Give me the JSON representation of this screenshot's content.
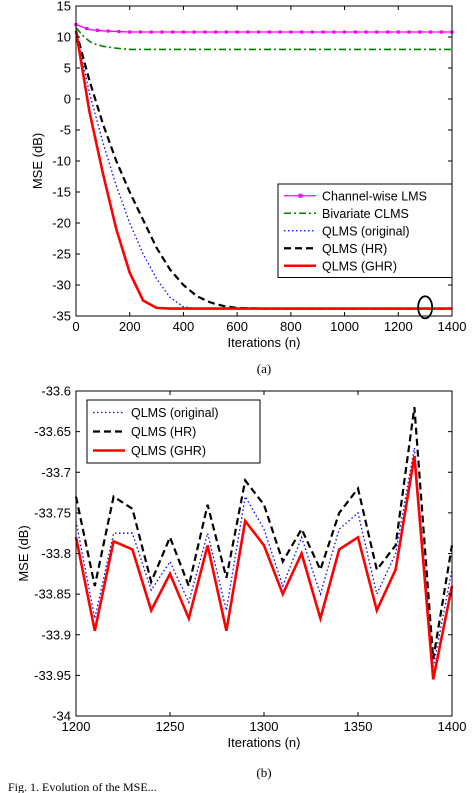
{
  "caption": "Fig. 1.   Evolution of the MSE...",
  "chart_data": [
    {
      "type": "line",
      "subplot_label": "(a)",
      "xlabel": "Iterations (n)",
      "ylabel": "MSE (dB)",
      "xlim": [
        0,
        1400
      ],
      "ylim": [
        -35,
        15
      ],
      "xticks": [
        0,
        200,
        400,
        600,
        800,
        1000,
        1200,
        1400
      ],
      "yticks": [
        15,
        10,
        5,
        0,
        -5,
        -10,
        -15,
        -20,
        -25,
        -30,
        -35
      ],
      "xtick_labels": [
        "0",
        "200",
        "400",
        "600",
        "800",
        "1000",
        "1200",
        "1400"
      ],
      "ytick_labels": [
        "15",
        "10",
        "5",
        "0",
        "-5",
        "-10",
        "-15",
        "-20",
        "-25",
        "-30",
        "-35"
      ],
      "legend_position": "lower-right",
      "annotation": "ellipse marker near n=1300, MSE=-33.8 dB",
      "series": [
        {
          "name": "Channel-wise LMS",
          "color": "#ff00ff",
          "style": "solid-square-markers",
          "x": [
            0,
            50,
            100,
            200,
            400,
            600,
            800,
            1000,
            1200,
            1400
          ],
          "y": [
            12.0,
            11.2,
            11.0,
            10.8,
            10.8,
            10.8,
            10.8,
            10.8,
            10.8,
            10.8
          ]
        },
        {
          "name": "Bivariate CLMS",
          "color": "#008000",
          "style": "dash-dot",
          "x": [
            0,
            30,
            60,
            100,
            150,
            200,
            300,
            400,
            600,
            800,
            1000,
            1200,
            1400
          ],
          "y": [
            11.5,
            10.0,
            9.0,
            8.5,
            8.2,
            8.0,
            8.0,
            8.0,
            8.0,
            8.0,
            8.0,
            8.0,
            8.0
          ]
        },
        {
          "name": "QLMS (original)",
          "color": "#0000ff",
          "style": "dotted",
          "x": [
            0,
            50,
            100,
            150,
            200,
            250,
            300,
            350,
            400,
            450,
            500,
            600,
            800,
            1000,
            1200,
            1400
          ],
          "y": [
            11,
            1,
            -7,
            -14,
            -20,
            -25,
            -29,
            -32,
            -33.5,
            -33.8,
            -33.8,
            -33.8,
            -33.8,
            -33.8,
            -33.8,
            -33.8
          ]
        },
        {
          "name": "QLMS (HR)",
          "color": "#000000",
          "style": "dashed",
          "x": [
            0,
            50,
            100,
            150,
            200,
            250,
            300,
            350,
            400,
            450,
            500,
            550,
            600,
            700,
            800,
            1000,
            1200,
            1400
          ],
          "y": [
            11,
            3,
            -4,
            -10,
            -15,
            -19.5,
            -24,
            -27.5,
            -30,
            -31.8,
            -32.8,
            -33.4,
            -33.7,
            -33.8,
            -33.8,
            -33.8,
            -33.8,
            -33.8
          ]
        },
        {
          "name": "QLMS (GHR)",
          "color": "#ff0000",
          "style": "solid-thick",
          "x": [
            0,
            50,
            100,
            150,
            200,
            250,
            300,
            350,
            400,
            600,
            800,
            1000,
            1200,
            1400
          ],
          "y": [
            11,
            -2,
            -12,
            -21,
            -28,
            -32.5,
            -33.7,
            -33.8,
            -33.8,
            -33.8,
            -33.8,
            -33.8,
            -33.8,
            -33.8
          ]
        }
      ]
    },
    {
      "type": "line",
      "subplot_label": "(b)",
      "xlabel": "Iterations (n)",
      "ylabel": "MSE (dB)",
      "xlim": [
        1200,
        1400
      ],
      "ylim": [
        -34,
        -33.6
      ],
      "xticks": [
        1200,
        1250,
        1300,
        1350,
        1400
      ],
      "yticks": [
        -33.6,
        -33.65,
        -33.7,
        -33.75,
        -33.8,
        -33.85,
        -33.9,
        -33.95,
        -34
      ],
      "xtick_labels": [
        "1200",
        "1250",
        "1300",
        "1350",
        "1400"
      ],
      "ytick_labels": [
        "-33.6",
        "-33.65",
        "-33.7",
        "-33.75",
        "-33.8",
        "-33.85",
        "-33.9",
        "-33.95",
        "-34"
      ],
      "legend_position": "top-left",
      "x": [
        1200,
        1210,
        1220,
        1230,
        1240,
        1250,
        1260,
        1270,
        1280,
        1290,
        1300,
        1310,
        1320,
        1330,
        1340,
        1350,
        1360,
        1370,
        1380,
        1390,
        1400
      ],
      "series": [
        {
          "name": "QLMS (original)",
          "color": "#0000ff",
          "style": "dotted",
          "y": [
            -33.76,
            -33.88,
            -33.775,
            -33.775,
            -33.845,
            -33.81,
            -33.86,
            -33.775,
            -33.87,
            -33.73,
            -33.77,
            -33.84,
            -33.78,
            -33.85,
            -33.77,
            -33.75,
            -33.85,
            -33.8,
            -33.67,
            -33.94,
            -33.82
          ]
        },
        {
          "name": "QLMS (HR)",
          "color": "#000000",
          "style": "dashed",
          "y": [
            -33.73,
            -33.84,
            -33.73,
            -33.745,
            -33.835,
            -33.78,
            -33.84,
            -33.74,
            -33.83,
            -33.71,
            -33.74,
            -33.81,
            -33.77,
            -33.82,
            -33.75,
            -33.72,
            -33.82,
            -33.79,
            -33.62,
            -33.93,
            -33.79
          ]
        },
        {
          "name": "QLMS (GHR)",
          "color": "#ff0000",
          "style": "solid-thick",
          "y": [
            -33.78,
            -33.895,
            -33.785,
            -33.795,
            -33.87,
            -33.825,
            -33.88,
            -33.79,
            -33.895,
            -33.76,
            -33.79,
            -33.85,
            -33.8,
            -33.88,
            -33.795,
            -33.78,
            -33.87,
            -33.82,
            -33.68,
            -33.955,
            -33.84
          ]
        }
      ]
    }
  ]
}
